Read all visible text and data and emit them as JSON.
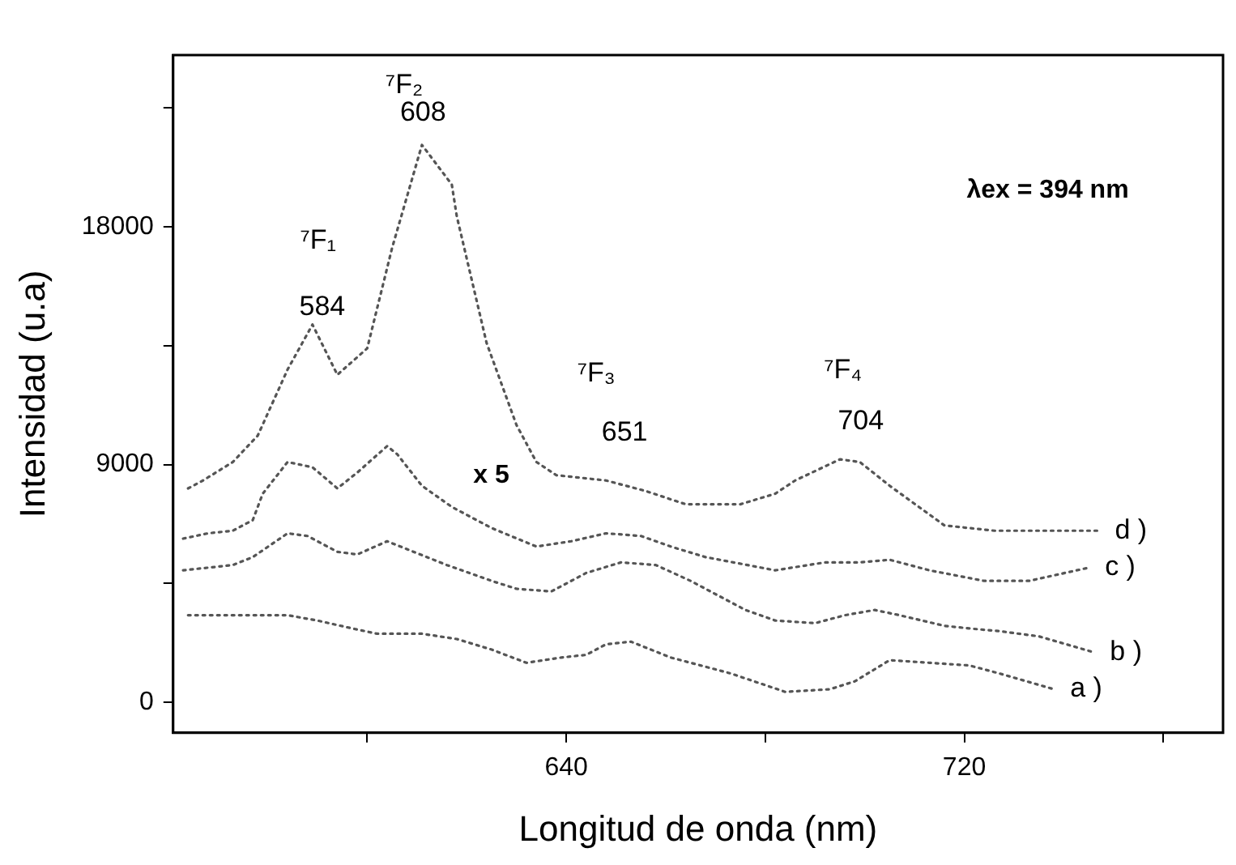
{
  "chart_data": {
    "type": "line",
    "xlabel": "Longitud de onda (nm)",
    "ylabel": "Intensidad (u.a)",
    "xlim": [
      561,
      772
    ],
    "xticks": [
      {
        "value": 600,
        "label": null
      },
      640,
      {
        "value": 680,
        "label": null
      },
      720,
      {
        "value": 760,
        "label": null
      }
    ],
    "ylim": [
      -1150,
      24500
    ],
    "yticks": [
      0,
      {
        "value": 4500,
        "label": null
      },
      9000,
      {
        "value": 13500,
        "label": null
      },
      18000,
      {
        "value": 22500,
        "label": null
      }
    ],
    "grid": false,
    "legend": false,
    "marker": "none",
    "line_style": "dotted",
    "series": [
      {
        "name": "d )",
        "color": "#555555",
        "x": [
          564,
          567,
          573,
          578,
          584,
          589,
          594,
          600,
          605,
          611,
          617,
          618,
          624,
          630,
          634,
          638,
          643,
          648,
          656,
          664,
          675,
          682,
          686,
          695,
          699,
          705,
          716,
          726,
          747
        ],
        "values": [
          8100,
          8400,
          9100,
          10100,
          12600,
          14300,
          12400,
          13400,
          17200,
          21100,
          19600,
          18400,
          13600,
          10500,
          9100,
          8600,
          8500,
          8400,
          8000,
          7500,
          7500,
          7900,
          8400,
          9200,
          9100,
          8200,
          6700,
          6500,
          6500
        ]
      },
      {
        "name": "c )",
        "color": "#555555",
        "x": [
          563,
          568,
          573,
          577,
          579,
          584,
          589,
          594,
          598,
          604,
          606,
          611,
          617,
          625,
          634,
          641,
          648,
          655,
          661,
          668,
          682,
          692,
          699,
          705,
          713,
          724,
          733,
          745
        ],
        "values": [
          6200,
          6400,
          6500,
          6900,
          7900,
          9100,
          8900,
          8100,
          8700,
          9700,
          9400,
          8200,
          7400,
          6600,
          5900,
          6100,
          6400,
          6300,
          5900,
          5500,
          5000,
          5300,
          5300,
          5400,
          5000,
          4600,
          4600,
          5100
        ]
      },
      {
        "name": "b )",
        "color": "#555555",
        "x": [
          563,
          573,
          577,
          584,
          588,
          594,
          598,
          604,
          616,
          625,
          630,
          637,
          644,
          651,
          658,
          665,
          676,
          682,
          690,
          696,
          702,
          707,
          716,
          721,
          727,
          735,
          746
        ],
        "values": [
          5000,
          5200,
          5500,
          6400,
          6300,
          5700,
          5600,
          6100,
          5200,
          4600,
          4300,
          4200,
          4900,
          5300,
          5200,
          4600,
          3500,
          3100,
          3000,
          3300,
          3500,
          3300,
          2900,
          2800,
          2700,
          2500,
          1900
        ]
      },
      {
        "name": "a )",
        "color": "#555555",
        "x": [
          564,
          572,
          584,
          590,
          597,
          602,
          611,
          618,
          625,
          632,
          639,
          644,
          648,
          653,
          661,
          667,
          673,
          684,
          693,
          698,
          705,
          713,
          721,
          727,
          738
        ],
        "values": [
          3300,
          3300,
          3300,
          3100,
          2800,
          2600,
          2600,
          2400,
          2000,
          1500,
          1700,
          1800,
          2200,
          2300,
          1700,
          1400,
          1100,
          400,
          500,
          800,
          1600,
          1500,
          1400,
          1100,
          500
        ]
      }
    ],
    "annotations": [
      "⁷F₁",
      "584",
      "⁷F₂",
      "608",
      "⁷F₃",
      "651",
      "⁷F₄",
      "704",
      "x 5",
      "λex = 394 nm"
    ]
  }
}
